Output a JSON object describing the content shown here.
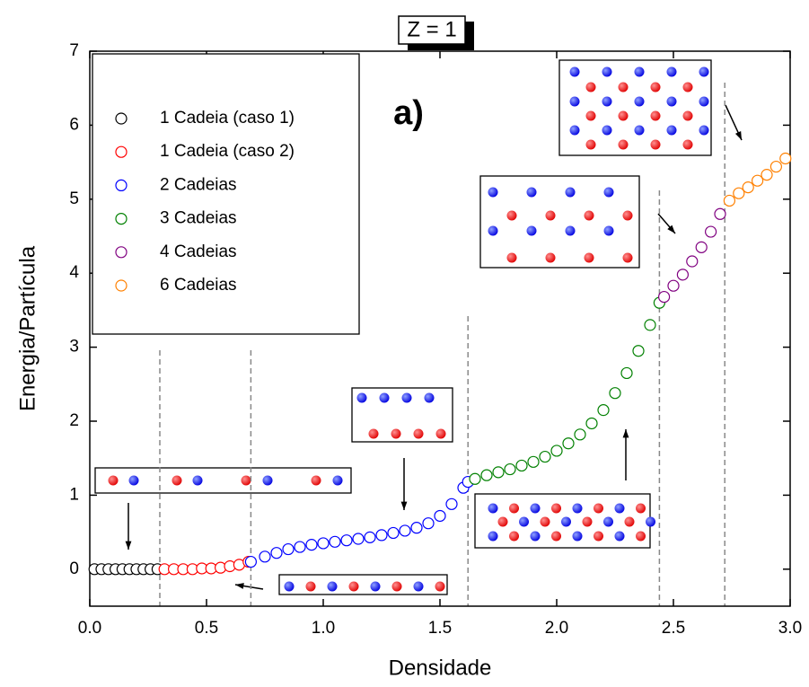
{
  "chart_data": {
    "type": "scatter",
    "title": "Z = 1",
    "annotation": "a)",
    "xlabel": "Densidade",
    "ylabel": "Energia/Partícula",
    "xlim": [
      0,
      3
    ],
    "ylim": [
      -0.5,
      7
    ],
    "xticks": [
      {
        "value": 0,
        "label": "0.0"
      },
      {
        "value": 0.5,
        "label": "0.5"
      },
      {
        "value": 1,
        "label": "1.0"
      },
      {
        "value": 1.5,
        "label": "1.5"
      },
      {
        "value": 2,
        "label": "2.0"
      },
      {
        "value": 2.5,
        "label": "2.5"
      },
      {
        "value": 3,
        "label": "3.0"
      }
    ],
    "yticks": [
      0,
      1,
      2,
      3,
      4,
      5,
      6,
      7
    ],
    "reference_lines": [
      0.3,
      0.69,
      1.62,
      2.44,
      2.72
    ],
    "series": [
      {
        "name": "1 Cadeia (caso 1)",
        "color": "#000000",
        "x": [
          0.02,
          0.05,
          0.08,
          0.11,
          0.14,
          0.17,
          0.2,
          0.23,
          0.26,
          0.29
        ],
        "values": [
          0,
          0,
          0,
          0,
          0,
          0,
          0,
          0,
          0,
          0
        ]
      },
      {
        "name": "1 Cadeia (caso 2)",
        "color": "#ff0000",
        "x": [
          0.32,
          0.36,
          0.4,
          0.44,
          0.48,
          0.52,
          0.56,
          0.6,
          0.64,
          0.68
        ],
        "values": [
          0,
          0,
          0,
          0,
          0.01,
          0.01,
          0.02,
          0.04,
          0.06,
          0.1
        ]
      },
      {
        "name": "2 Cadeias",
        "color": "#0000ff",
        "x": [
          0.69,
          0.75,
          0.8,
          0.85,
          0.9,
          0.95,
          1.0,
          1.05,
          1.1,
          1.15,
          1.2,
          1.25,
          1.3,
          1.35,
          1.4,
          1.45,
          1.5,
          1.55,
          1.6,
          1.62
        ],
        "values": [
          0.1,
          0.17,
          0.22,
          0.27,
          0.3,
          0.33,
          0.35,
          0.37,
          0.39,
          0.41,
          0.43,
          0.46,
          0.49,
          0.52,
          0.56,
          0.62,
          0.72,
          0.88,
          1.1,
          1.18
        ]
      },
      {
        "name": "3 Cadeias",
        "color": "#008000",
        "x": [
          1.65,
          1.7,
          1.75,
          1.8,
          1.85,
          1.9,
          1.95,
          2.0,
          2.05,
          2.1,
          2.15,
          2.2,
          2.25,
          2.3,
          2.35,
          2.4,
          2.44
        ],
        "values": [
          1.22,
          1.27,
          1.31,
          1.35,
          1.4,
          1.45,
          1.52,
          1.6,
          1.7,
          1.82,
          1.97,
          2.15,
          2.38,
          2.65,
          2.95,
          3.3,
          3.6
        ]
      },
      {
        "name": "4 Cadeias",
        "color": "#800080",
        "x": [
          2.46,
          2.5,
          2.54,
          2.58,
          2.62,
          2.66,
          2.7
        ],
        "values": [
          3.68,
          3.83,
          3.98,
          4.16,
          4.35,
          4.56,
          4.8
        ]
      },
      {
        "name": "6 Cadeias",
        "color": "#ff8000",
        "x": [
          2.74,
          2.78,
          2.82,
          2.86,
          2.9,
          2.94,
          2.98
        ],
        "values": [
          4.98,
          5.08,
          5.16,
          5.25,
          5.33,
          5.44,
          5.55
        ]
      }
    ]
  }
}
